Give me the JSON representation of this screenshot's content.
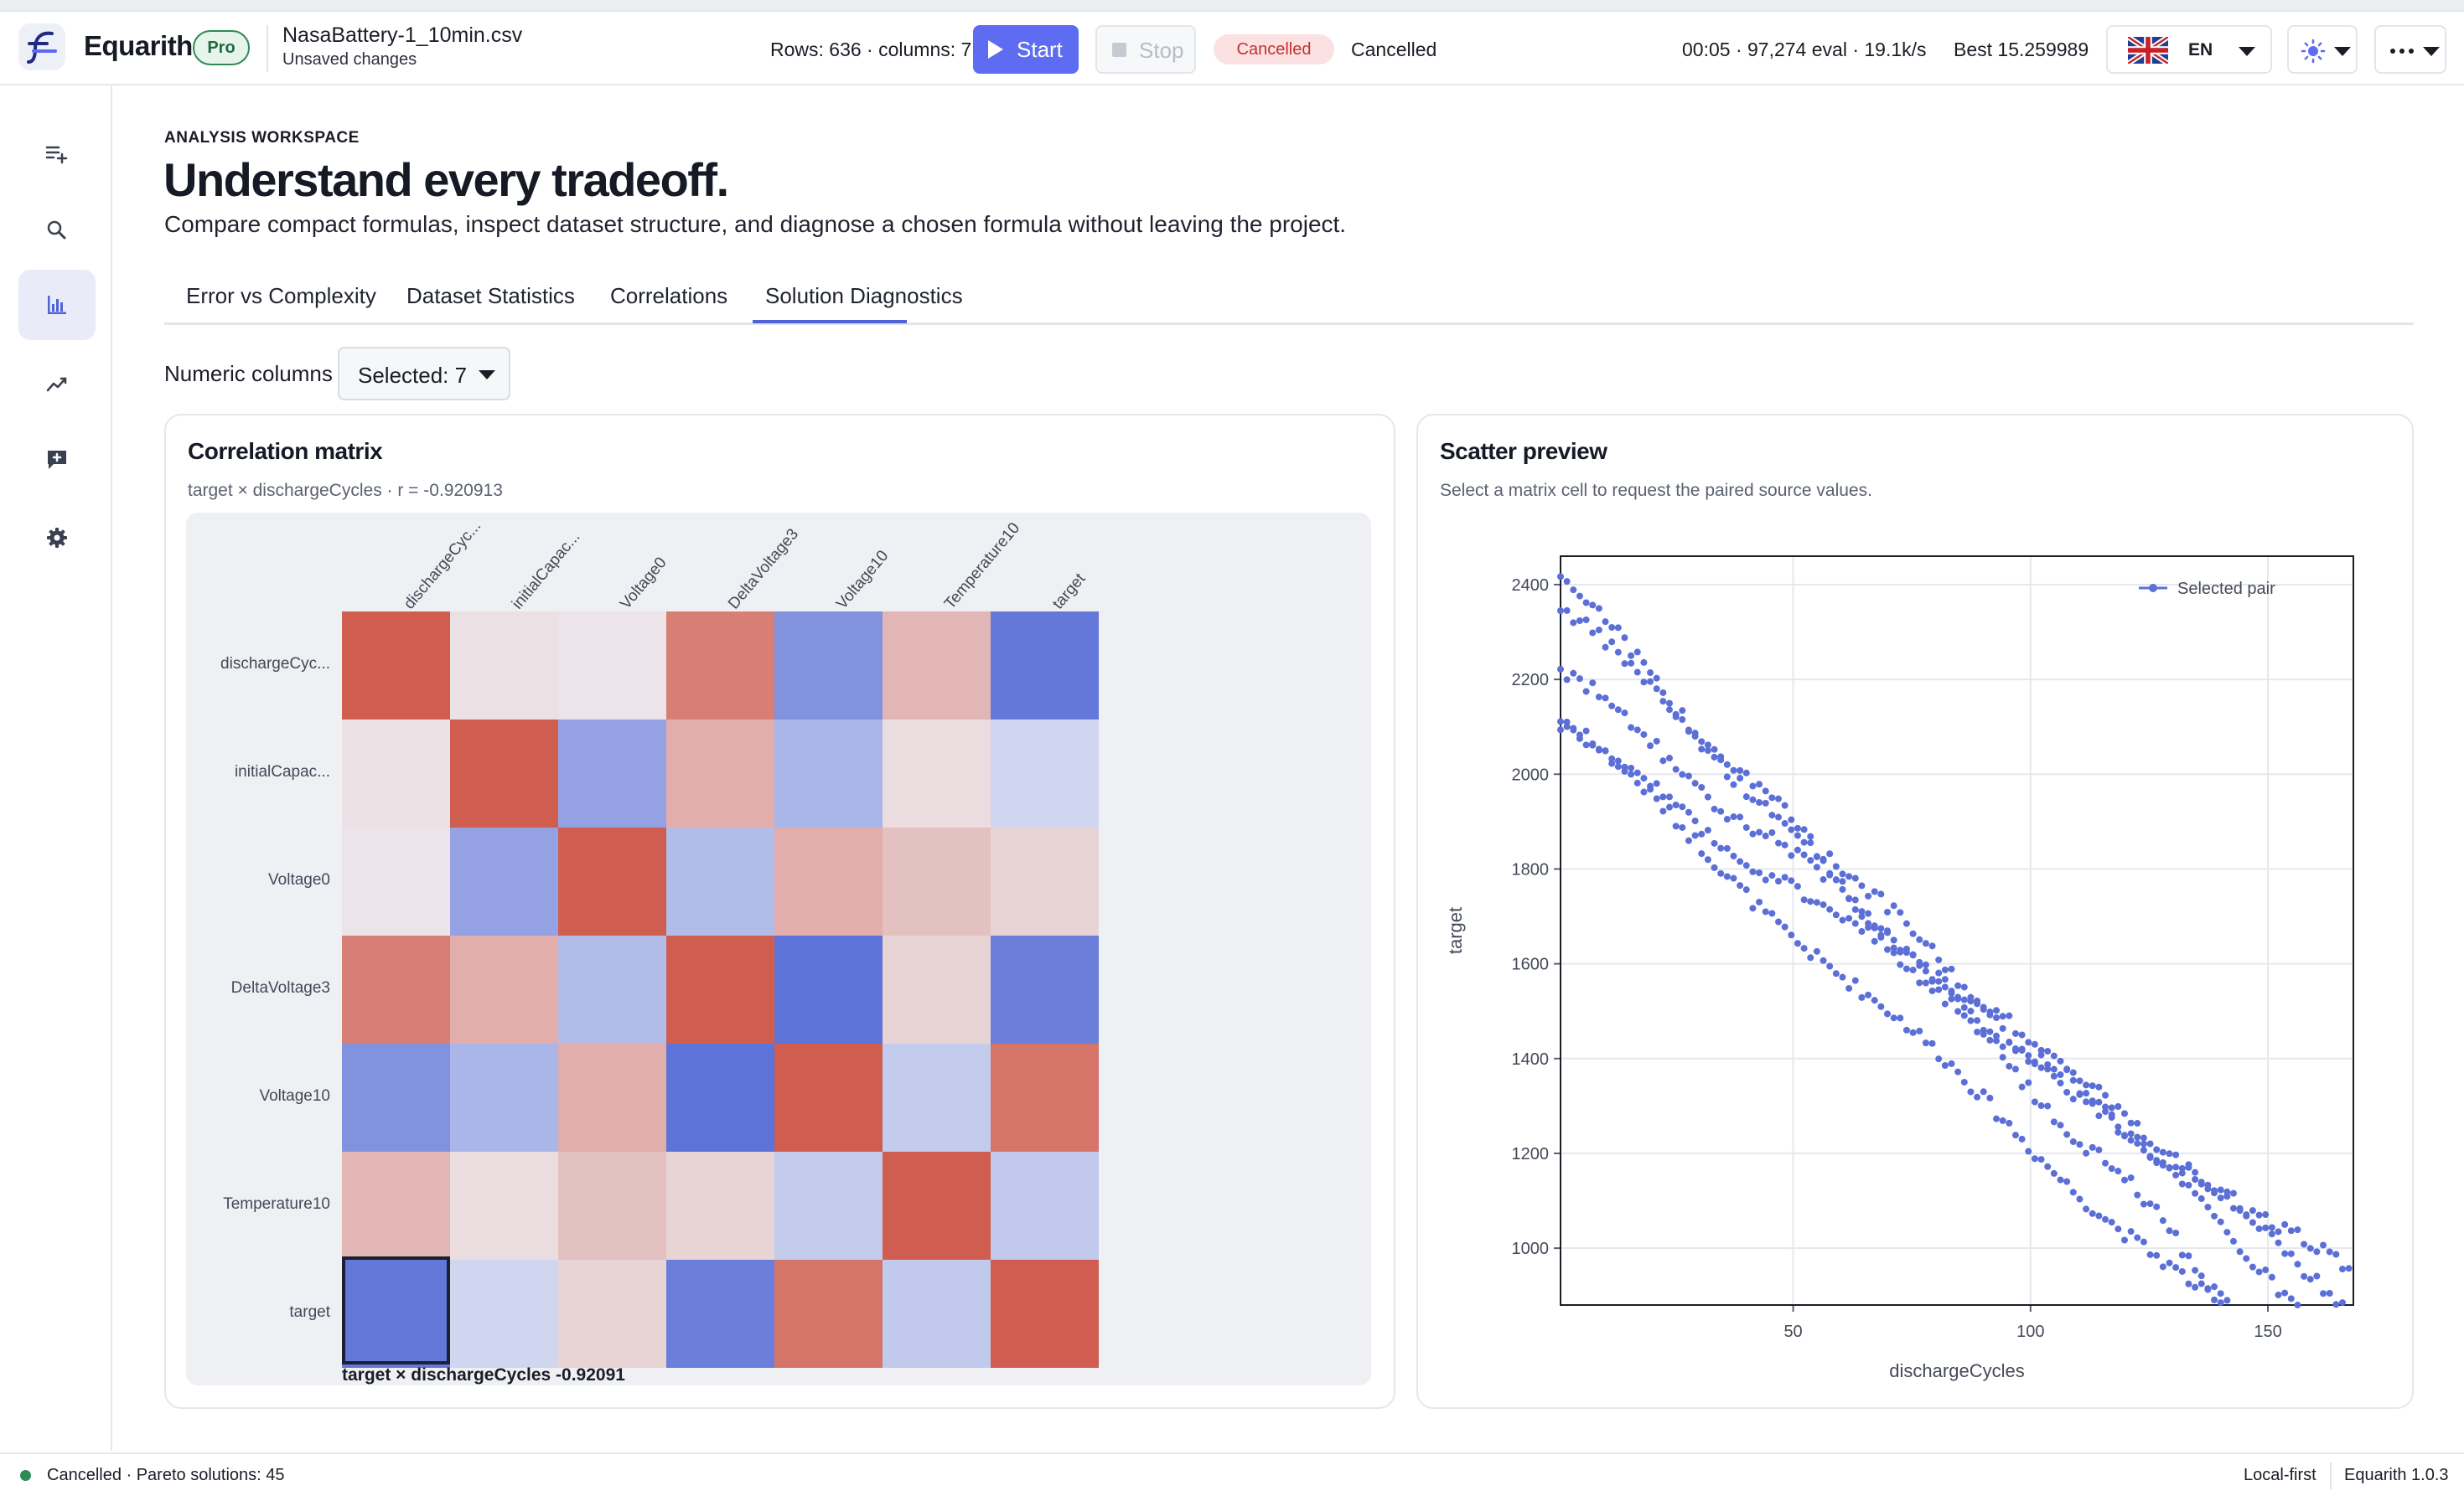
{
  "app": {
    "name": "Equarith",
    "tier": "Pro",
    "file_name": "NasaBattery-1_10min.csv",
    "file_status": "Unsaved changes"
  },
  "toolbar": {
    "rows_info": "Rows: 636 · columns: 7",
    "start_label": "Start",
    "stop_label": "Stop",
    "status_pill": "Cancelled",
    "status_text": "Cancelled",
    "eval_stats": "00:05 · 97,274 eval · 19.1k/s",
    "best": "Best 15.259989",
    "language": "EN"
  },
  "sidebar": {
    "items": [
      {
        "name": "add-list-icon",
        "active": false
      },
      {
        "name": "search-icon",
        "active": false
      },
      {
        "name": "bar-chart-icon",
        "active": true
      },
      {
        "name": "trend-icon",
        "active": false
      },
      {
        "name": "feedback-icon",
        "active": false
      },
      {
        "name": "gear-icon",
        "active": false
      }
    ]
  },
  "page": {
    "eyebrow": "ANALYSIS WORKSPACE",
    "title": "Understand every tradeoff.",
    "subtitle": "Compare compact formulas, inspect dataset structure, and diagnose a chosen formula without leaving the project."
  },
  "tabs": [
    {
      "label": "Error vs Complexity",
      "active": false
    },
    {
      "label": "Dataset Statistics",
      "active": false
    },
    {
      "label": "Correlations",
      "active": true
    },
    {
      "label": "Solution Diagnostics",
      "active": false
    }
  ],
  "filters": {
    "numeric_columns_label": "Numeric columns",
    "numeric_columns_value": "Selected: 7"
  },
  "colors": {
    "accent": "#5d6cf0",
    "negative": "#5b6fd6",
    "positive": "#d05f4f",
    "status_ok": "#2f8a55"
  },
  "chart_data": [
    {
      "type": "heatmap",
      "title": "Correlation matrix",
      "subtitle": "target × dischargeCycles · r = -0.920913",
      "columns": [
        "dischargeCyc...",
        "initialCapac...",
        "Voltage0",
        "DeltaVoltage3",
        "Voltage10",
        "Temperature10",
        "target"
      ],
      "rows": [
        "dischargeCyc...",
        "initialCapac...",
        "Voltage0",
        "DeltaVoltage3",
        "Voltage10",
        "Temperature10",
        "target"
      ],
      "values": [
        [
          1.0,
          0.1,
          0.08,
          0.78,
          -0.72,
          0.4,
          -0.92
        ],
        [
          0.1,
          1.0,
          -0.6,
          0.45,
          -0.45,
          0.14,
          -0.2
        ],
        [
          0.08,
          -0.6,
          1.0,
          -0.4,
          0.45,
          0.32,
          0.2
        ],
        [
          0.78,
          0.45,
          -0.4,
          1.0,
          -0.96,
          0.2,
          -0.88
        ],
        [
          -0.72,
          -0.45,
          0.45,
          -0.96,
          1.0,
          -0.28,
          0.85
        ],
        [
          0.4,
          0.14,
          0.32,
          0.2,
          -0.28,
          1.0,
          -0.3
        ],
        [
          -0.92,
          -0.2,
          0.2,
          -0.88,
          0.85,
          -0.3,
          1.0
        ]
      ],
      "selected_cell": {
        "row": 6,
        "col": 0
      },
      "selected_readout": "target × dischargeCycles  -0.92091"
    },
    {
      "type": "scatter",
      "title": "Scatter preview",
      "subtitle": "Select a matrix cell to request the paired source values.",
      "xlabel": "dischargeCycles",
      "ylabel": "target",
      "xlim": [
        1,
        168
      ],
      "ylim": [
        880,
        2460
      ],
      "xticks": [
        50,
        100,
        150
      ],
      "yticks": [
        1000,
        1200,
        1400,
        1600,
        1800,
        2000,
        2200,
        2400
      ],
      "grid": true,
      "legend_position": "top-right",
      "series": [
        {
          "name": "Selected pair"
        }
      ]
    }
  ]
}
